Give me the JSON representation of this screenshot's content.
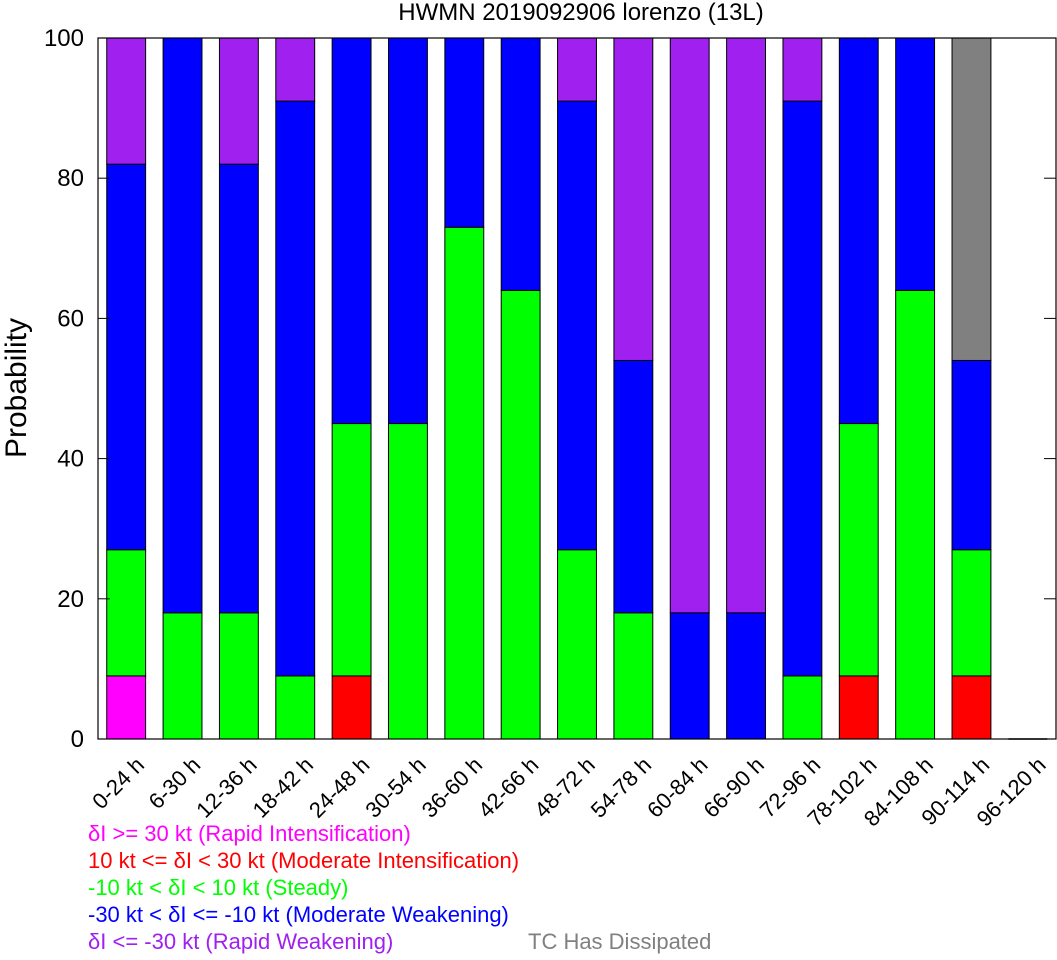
{
  "chart_data": {
    "type": "bar",
    "stacked": true,
    "title": "HWMN 2019092906 lorenzo (13L)",
    "ylabel": "Probability",
    "xlabel": "",
    "ylim": [
      0,
      100
    ],
    "yticks": [
      0,
      20,
      40,
      60,
      80,
      100
    ],
    "grid": false,
    "categories": [
      "0-24 h",
      "6-30 h",
      "12-36 h",
      "18-42 h",
      "24-48 h",
      "30-54 h",
      "36-60 h",
      "42-66 h",
      "48-72 h",
      "54-78 h",
      "60-84 h",
      "66-90 h",
      "72-96 h",
      "78-102 h",
      "84-108 h",
      "90-114 h",
      "96-120 h"
    ],
    "series": [
      {
        "key": "ri",
        "color": "#ff00ff",
        "values": [
          9,
          0,
          0,
          0,
          0,
          0,
          0,
          0,
          0,
          0,
          0,
          0,
          0,
          0,
          0,
          0,
          0
        ]
      },
      {
        "key": "mi",
        "color": "#ff0000",
        "values": [
          0,
          0,
          0,
          0,
          9,
          0,
          0,
          0,
          0,
          0,
          0,
          0,
          0,
          9,
          0,
          9,
          0
        ]
      },
      {
        "key": "steady",
        "color": "#00ff00",
        "values": [
          18,
          18,
          18,
          9,
          36,
          45,
          73,
          64,
          27,
          18,
          0,
          0,
          9,
          36,
          64,
          18,
          0
        ]
      },
      {
        "key": "mw",
        "color": "#0000ff",
        "values": [
          55,
          82,
          64,
          82,
          55,
          55,
          27,
          36,
          64,
          36,
          18,
          18,
          82,
          55,
          36,
          27,
          0
        ]
      },
      {
        "key": "rw",
        "color": "#a020f0",
        "values": [
          18,
          0,
          18,
          9,
          0,
          0,
          0,
          0,
          9,
          46,
          82,
          82,
          9,
          0,
          0,
          0,
          0
        ]
      },
      {
        "key": "dissipated",
        "color": "#808080",
        "values": [
          0,
          0,
          0,
          0,
          0,
          0,
          0,
          0,
          0,
          0,
          0,
          0,
          0,
          0,
          0,
          46,
          0
        ]
      }
    ],
    "legend": [
      {
        "text": "δI >= 30 kt (Rapid Intensification)",
        "color": "#ff00ff"
      },
      {
        "text": "10 kt <= δI < 30 kt (Moderate Intensification)",
        "color": "#ff0000"
      },
      {
        "text": "-10 kt < δI < 10 kt (Steady)",
        "color": "#00ff00"
      },
      {
        "text": "-30 kt < δI <= -10 kt (Moderate Weakening)",
        "color": "#0000ff"
      },
      {
        "text": "δI <= -30 kt (Rapid Weakening)",
        "color": "#a020f0"
      },
      {
        "text": "TC Has Dissipated",
        "color": "#808080"
      }
    ],
    "legend_placement": "bottom-left"
  }
}
